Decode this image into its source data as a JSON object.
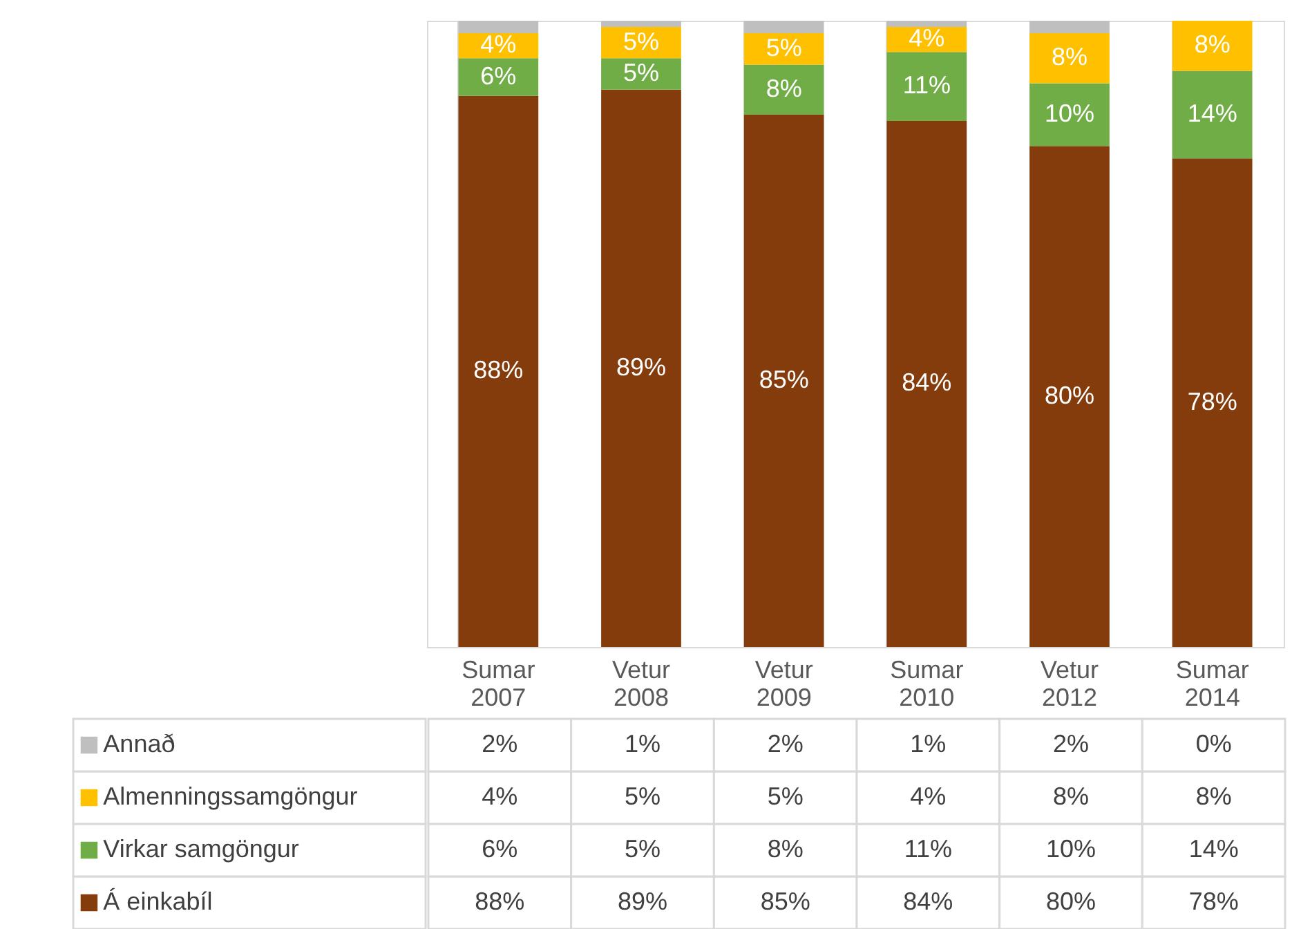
{
  "chart_data": {
    "type": "bar",
    "stacked": true,
    "categories": [
      "Sumar 2007",
      "Vetur 2008",
      "Vetur 2009",
      "Sumar 2010",
      "Vetur 2012",
      "Sumar 2014"
    ],
    "ylim": [
      0,
      100
    ],
    "tick_labels": "x",
    "grid": "x",
    "legend": "bottom",
    "series": [
      {
        "name": "Á einkabíl",
        "color": "#843c0c",
        "values": [
          88,
          89,
          85,
          84,
          80,
          78
        ],
        "value_labels": [
          "88%",
          "89%",
          "85%",
          "84%",
          "80%",
          "78%"
        ]
      },
      {
        "name": "Virkar samgöngur",
        "color": "#70ad47",
        "values": [
          6,
          5,
          8,
          11,
          10,
          14
        ],
        "value_labels": [
          "6%",
          "5%",
          "8%",
          "11%",
          "10%",
          "14%"
        ]
      },
      {
        "name": "Almenningssamgöngur",
        "color": "#ffc000",
        "values": [
          4,
          5,
          5,
          4,
          8,
          8
        ],
        "value_labels": [
          "4%",
          "5%",
          "5%",
          "4%",
          "8%",
          "8%"
        ]
      },
      {
        "name": "Annað",
        "color": "#bfbfbf",
        "values": [
          2,
          1,
          2,
          1,
          2,
          0
        ],
        "value_labels": [
          "2%",
          "1%",
          "2%",
          "1%",
          "2%",
          "0%"
        ]
      }
    ]
  }
}
